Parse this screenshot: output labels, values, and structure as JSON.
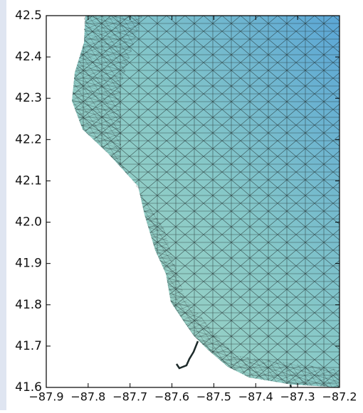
{
  "chart_data": {
    "type": "mesh",
    "xlim": [
      -87.9,
      -87.2
    ],
    "ylim": [
      41.6,
      42.5
    ],
    "xticks": [
      {
        "value": -87.9,
        "label": "−87.9"
      },
      {
        "value": -87.8,
        "label": "−87.8"
      },
      {
        "value": -87.7,
        "label": "−87.7"
      },
      {
        "value": -87.6,
        "label": "−87.6"
      },
      {
        "value": -87.5,
        "label": "−87.5"
      },
      {
        "value": -87.4,
        "label": "−87.4"
      },
      {
        "value": -87.3,
        "label": "−87.3"
      },
      {
        "value": -87.2,
        "label": "−87.2"
      }
    ],
    "yticks": [
      41.6,
      41.7,
      41.8,
      41.9,
      {
        "value": 42.0,
        "label": "42.0"
      },
      42.1,
      42.2,
      42.3,
      42.4,
      42.5
    ]
  }
}
